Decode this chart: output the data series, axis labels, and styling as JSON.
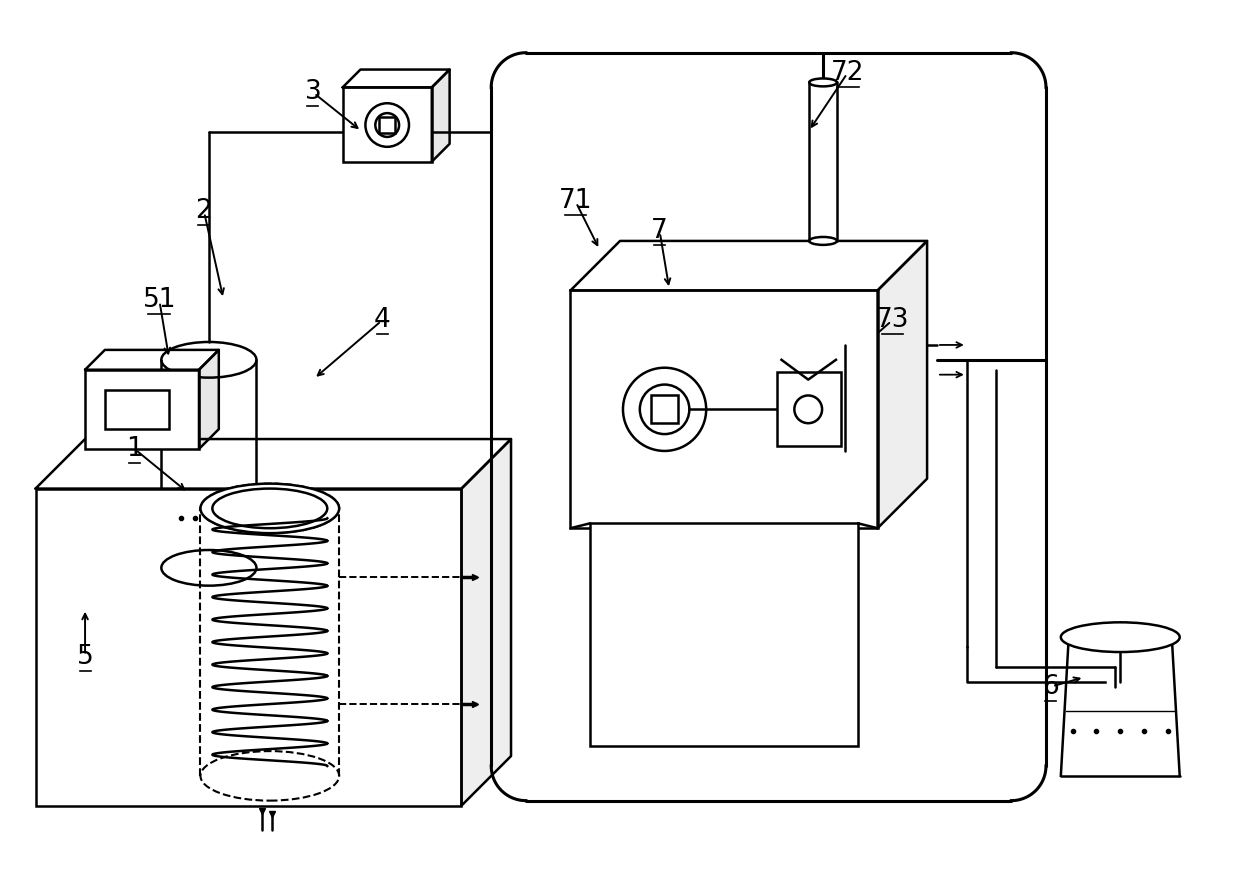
{
  "bg": "#ffffff",
  "lc": "#000000",
  "lw": 1.8,
  "lw_pipe": 2.2,
  "fs": 19,
  "figw": 12.4,
  "figh": 8.89,
  "dpi": 100
}
